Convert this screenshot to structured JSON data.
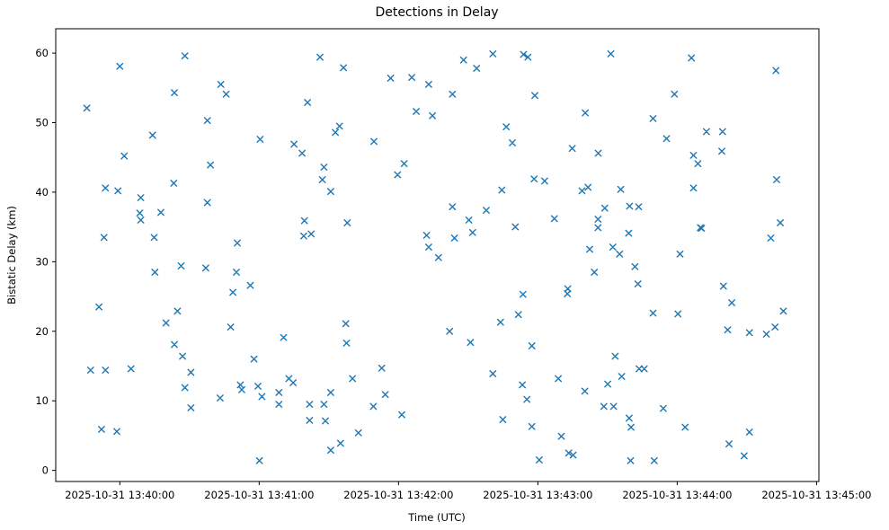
{
  "chart_data": {
    "type": "scatter",
    "title": "Detections in Delay",
    "xlabel": "Time (UTC)",
    "ylabel": "Bistatic Delay (km)",
    "marker": "x",
    "marker_color": "#1f77b4",
    "background_color": "#ffffff",
    "grid": false,
    "legend": null,
    "x_unit": "seconds after 2025-10-31 13:40:00 UTC",
    "x_domain": [
      -27.6,
      301.0
    ],
    "y_domain": [
      -1.6,
      63.5
    ],
    "x_ticks": [
      {
        "t": 0,
        "label": "2025-10-31 13:40:00"
      },
      {
        "t": 60,
        "label": "2025-10-31 13:41:00"
      },
      {
        "t": 120,
        "label": "2025-10-31 13:42:00"
      },
      {
        "t": 180,
        "label": "2025-10-31 13:43:00"
      },
      {
        "t": 240,
        "label": "2025-10-31 13:44:00"
      },
      {
        "t": 300,
        "label": "2025-10-31 13:45:00"
      }
    ],
    "y_ticks": [
      0,
      10,
      20,
      30,
      40,
      50,
      60
    ],
    "points": [
      [
        28.0,
        59.6
      ],
      [
        0.0,
        58.1
      ],
      [
        23.5,
        54.3
      ],
      [
        43.5,
        55.5
      ],
      [
        45.8,
        54.1
      ],
      [
        -14.2,
        52.1
      ],
      [
        37.7,
        50.3
      ],
      [
        14.1,
        48.2
      ],
      [
        1.9,
        45.2
      ],
      [
        39.0,
        43.9
      ],
      [
        86.2,
        59.4
      ],
      [
        96.3,
        57.9
      ],
      [
        116.6,
        56.4
      ],
      [
        125.7,
        56.5
      ],
      [
        133.0,
        55.5
      ],
      [
        80.8,
        52.9
      ],
      [
        127.6,
        51.6
      ],
      [
        134.6,
        51.0
      ],
      [
        94.6,
        49.5
      ],
      [
        92.8,
        48.6
      ],
      [
        60.4,
        47.6
      ],
      [
        75.0,
        46.9
      ],
      [
        78.5,
        45.6
      ],
      [
        87.9,
        43.6
      ],
      [
        109.4,
        47.3
      ],
      [
        122.4,
        44.1
      ],
      [
        119.6,
        42.5
      ],
      [
        148.0,
        59.0
      ],
      [
        153.6,
        57.8
      ],
      [
        160.6,
        59.9
      ],
      [
        173.8,
        59.8
      ],
      [
        175.7,
        59.4
      ],
      [
        211.4,
        59.9
      ],
      [
        143.2,
        54.1
      ],
      [
        178.7,
        53.9
      ],
      [
        200.4,
        51.4
      ],
      [
        166.4,
        49.4
      ],
      [
        169.0,
        47.1
      ],
      [
        194.8,
        46.3
      ],
      [
        206.0,
        45.6
      ],
      [
        246.1,
        59.3
      ],
      [
        282.5,
        57.5
      ],
      [
        238.8,
        54.1
      ],
      [
        229.6,
        50.6
      ],
      [
        235.4,
        47.7
      ],
      [
        252.6,
        48.7
      ],
      [
        259.5,
        48.7
      ],
      [
        247.0,
        45.3
      ],
      [
        248.9,
        44.1
      ],
      [
        259.2,
        45.9
      ],
      [
        -6.2,
        40.6
      ],
      [
        -0.8,
        40.2
      ],
      [
        9.0,
        39.2
      ],
      [
        23.2,
        41.3
      ],
      [
        37.7,
        38.5
      ],
      [
        8.6,
        37.0
      ],
      [
        9.0,
        36.0
      ],
      [
        17.7,
        37.1
      ],
      [
        -6.8,
        33.5
      ],
      [
        14.8,
        33.5
      ],
      [
        50.6,
        32.7
      ],
      [
        26.4,
        29.4
      ],
      [
        15.1,
        28.5
      ],
      [
        37.0,
        29.1
      ],
      [
        50.2,
        28.5
      ],
      [
        48.7,
        25.6
      ],
      [
        -9.0,
        23.5
      ],
      [
        24.8,
        22.9
      ],
      [
        19.9,
        21.2
      ],
      [
        87.2,
        41.8
      ],
      [
        90.8,
        40.1
      ],
      [
        79.5,
        35.9
      ],
      [
        97.9,
        35.6
      ],
      [
        79.2,
        33.7
      ],
      [
        82.4,
        34.0
      ],
      [
        132.1,
        33.8
      ],
      [
        133.0,
        32.1
      ],
      [
        137.2,
        30.6
      ],
      [
        56.2,
        26.6
      ],
      [
        97.3,
        21.1
      ],
      [
        178.4,
        41.9
      ],
      [
        182.9,
        41.6
      ],
      [
        164.5,
        40.3
      ],
      [
        199.0,
        40.2
      ],
      [
        201.6,
        40.7
      ],
      [
        215.7,
        40.4
      ],
      [
        143.2,
        37.9
      ],
      [
        157.8,
        37.4
      ],
      [
        150.3,
        36.0
      ],
      [
        151.9,
        34.2
      ],
      [
        144.1,
        33.4
      ],
      [
        208.8,
        37.7
      ],
      [
        205.9,
        36.1
      ],
      [
        205.9,
        34.9
      ],
      [
        187.1,
        36.2
      ],
      [
        170.3,
        35.0
      ],
      [
        202.3,
        31.8
      ],
      [
        212.3,
        32.1
      ],
      [
        215.2,
        31.1
      ],
      [
        204.3,
        28.5
      ],
      [
        192.9,
        26.1
      ],
      [
        192.7,
        25.4
      ],
      [
        173.6,
        25.3
      ],
      [
        171.6,
        22.4
      ],
      [
        163.9,
        21.3
      ],
      [
        142.0,
        20.0
      ],
      [
        282.8,
        41.8
      ],
      [
        247.0,
        40.6
      ],
      [
        219.5,
        38.0
      ],
      [
        223.4,
        37.9
      ],
      [
        250.0,
        34.9
      ],
      [
        250.5,
        34.8
      ],
      [
        219.1,
        34.1
      ],
      [
        284.4,
        35.6
      ],
      [
        280.3,
        33.4
      ],
      [
        241.2,
        31.1
      ],
      [
        221.8,
        29.3
      ],
      [
        223.1,
        26.8
      ],
      [
        259.9,
        26.5
      ],
      [
        263.5,
        24.1
      ],
      [
        229.6,
        22.6
      ],
      [
        240.3,
        22.5
      ],
      [
        285.7,
        22.9
      ],
      [
        47.7,
        20.6
      ],
      [
        23.5,
        18.1
      ],
      [
        27.0,
        16.4
      ],
      [
        -12.6,
        14.4
      ],
      [
        -6.2,
        14.4
      ],
      [
        4.8,
        14.6
      ],
      [
        30.6,
        14.1
      ],
      [
        28.0,
        11.9
      ],
      [
        51.9,
        12.3
      ],
      [
        52.5,
        11.6
      ],
      [
        43.2,
        10.4
      ],
      [
        30.6,
        9.0
      ],
      [
        -7.9,
        5.9
      ],
      [
        -1.3,
        5.6
      ],
      [
        70.5,
        19.1
      ],
      [
        97.6,
        18.3
      ],
      [
        57.8,
        16.0
      ],
      [
        112.8,
        14.7
      ],
      [
        72.8,
        13.2
      ],
      [
        74.6,
        12.6
      ],
      [
        100.2,
        13.2
      ],
      [
        59.5,
        12.1
      ],
      [
        61.2,
        10.6
      ],
      [
        68.5,
        11.2
      ],
      [
        68.5,
        9.5
      ],
      [
        90.8,
        11.2
      ],
      [
        81.7,
        9.5
      ],
      [
        87.9,
        9.5
      ],
      [
        114.3,
        10.9
      ],
      [
        109.2,
        9.2
      ],
      [
        121.4,
        8.0
      ],
      [
        81.7,
        7.2
      ],
      [
        88.5,
        7.1
      ],
      [
        102.7,
        5.4
      ],
      [
        95.0,
        3.9
      ],
      [
        90.8,
        2.9
      ],
      [
        60.1,
        1.4
      ],
      [
        151.0,
        18.4
      ],
      [
        177.4,
        17.9
      ],
      [
        213.3,
        16.4
      ],
      [
        160.6,
        13.9
      ],
      [
        188.8,
        13.2
      ],
      [
        173.3,
        12.3
      ],
      [
        200.2,
        11.4
      ],
      [
        210.1,
        12.4
      ],
      [
        216.1,
        13.5
      ],
      [
        175.3,
        10.2
      ],
      [
        208.4,
        9.2
      ],
      [
        212.6,
        9.2
      ],
      [
        164.9,
        7.3
      ],
      [
        177.4,
        6.3
      ],
      [
        190.1,
        4.9
      ],
      [
        193.3,
        2.5
      ],
      [
        195.2,
        2.2
      ],
      [
        180.6,
        1.5
      ],
      [
        261.7,
        20.2
      ],
      [
        271.1,
        19.8
      ],
      [
        278.4,
        19.6
      ],
      [
        282.1,
        20.6
      ],
      [
        223.6,
        14.6
      ],
      [
        225.8,
        14.6
      ],
      [
        234.0,
        8.9
      ],
      [
        219.3,
        7.5
      ],
      [
        220.1,
        6.2
      ],
      [
        243.4,
        6.2
      ],
      [
        271.1,
        5.5
      ],
      [
        262.3,
        3.8
      ],
      [
        268.8,
        2.1
      ],
      [
        219.9,
        1.4
      ],
      [
        230.1,
        1.4
      ]
    ]
  }
}
